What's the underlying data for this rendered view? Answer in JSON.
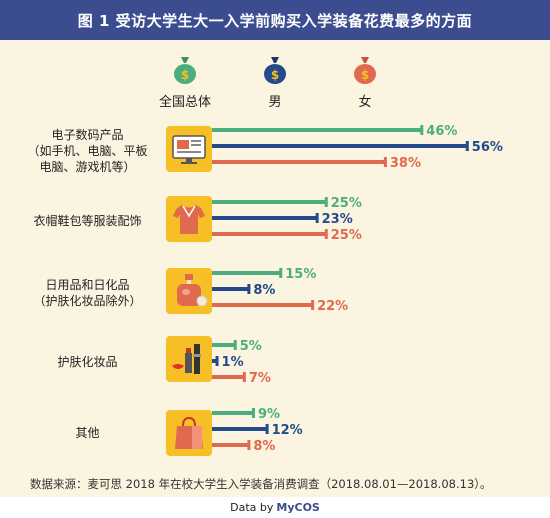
{
  "title": "图 1  受访大学生大一入学前购买入学装备花费最多的方面",
  "colors": {
    "title_bg": "#3c4d8f",
    "icon_bg": "#f6bf26",
    "series_total": "#4cae7e",
    "series_male": "#244a8c",
    "series_female": "#e06a4e"
  },
  "legend": [
    {
      "label": "全国总体",
      "icon": "money-bag-icon",
      "color": "#4cae7e"
    },
    {
      "label": "男",
      "icon": "money-bag-icon",
      "color": "#244a8c"
    },
    {
      "label": "女",
      "icon": "money-bag-icon",
      "color": "#e06a4e"
    }
  ],
  "categories": [
    {
      "lines": [
        "电子数码产品",
        "（如手机、电脑、平板",
        "电脑、游戏机等）"
      ],
      "icon": "computer-monitor-icon"
    },
    {
      "lines": [
        "衣帽鞋包等服装配饰"
      ],
      "icon": "shirt-icon"
    },
    {
      "lines": [
        "日用品和日化品",
        "（护肤化妆品除外）"
      ],
      "icon": "perfume-bottle-icon"
    },
    {
      "lines": [
        "护肤化妆品"
      ],
      "icon": "lipstick-icon"
    },
    {
      "lines": [
        "其他"
      ],
      "icon": "shopping-bag-icon"
    }
  ],
  "chart_data": {
    "type": "bar",
    "orientation": "horizontal",
    "categories": [
      "电子数码产品（如手机、电脑、平板电脑、游戏机等）",
      "衣帽鞋包等服装配饰",
      "日用品和日化品（护肤化妆品除外）",
      "护肤化妆品",
      "其他"
    ],
    "series": [
      {
        "name": "全国总体",
        "values": [
          46,
          25,
          15,
          5,
          9
        ]
      },
      {
        "name": "男",
        "values": [
          56,
          23,
          8,
          1,
          12
        ]
      },
      {
        "name": "女",
        "values": [
          38,
          25,
          22,
          7,
          8
        ]
      }
    ],
    "data_labels": [
      [
        "46%",
        "56%",
        "38%"
      ],
      [
        "25%",
        "23%",
        "25%"
      ],
      [
        "15%",
        "8%",
        "22%"
      ],
      [
        "5%",
        "1%",
        "7%"
      ],
      [
        "9%",
        "12%",
        "8%"
      ]
    ],
    "unit": "%",
    "xlim": [
      0,
      56
    ],
    "grid": false,
    "legend_position": "top-center"
  },
  "source_note": "数据来源：麦可思 2018 年在校大学生入学装备消费调查（2018.08.01—2018.08.13）。",
  "footer": {
    "prefix": "Data by",
    "brand": "MyCOS"
  }
}
